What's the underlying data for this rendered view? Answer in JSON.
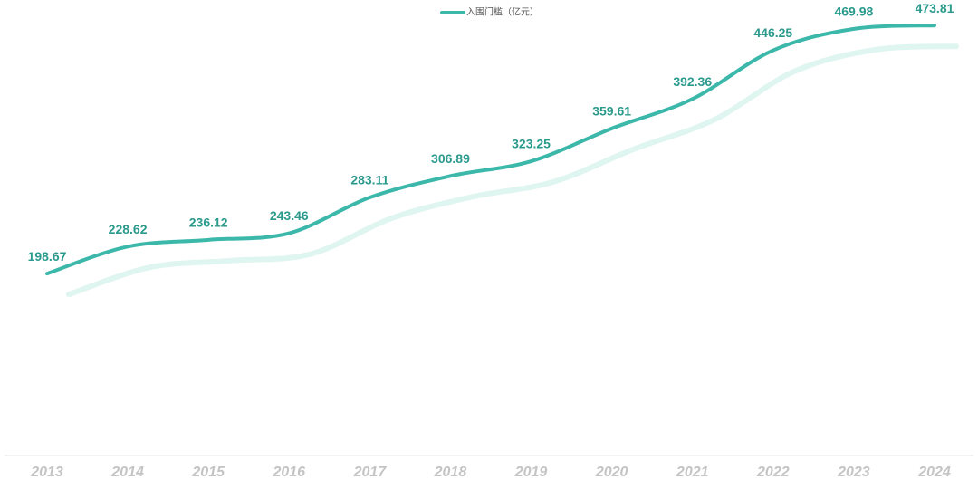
{
  "chart_data": {
    "type": "line",
    "categories": [
      "2013",
      "2014",
      "2015",
      "2016",
      "2017",
      "2018",
      "2019",
      "2020",
      "2021",
      "2022",
      "2023",
      "2024"
    ],
    "series": [
      {
        "name": "入围门槛（亿元）",
        "color": "#3bb8aa",
        "values": [
          198.67,
          228.62,
          236.12,
          243.46,
          283.11,
          306.89,
          323.25,
          359.61,
          392.36,
          446.25,
          469.98,
          473.81
        ]
      }
    ],
    "ylim": [
      0,
      500
    ],
    "grid": false,
    "legend": "top"
  }
}
